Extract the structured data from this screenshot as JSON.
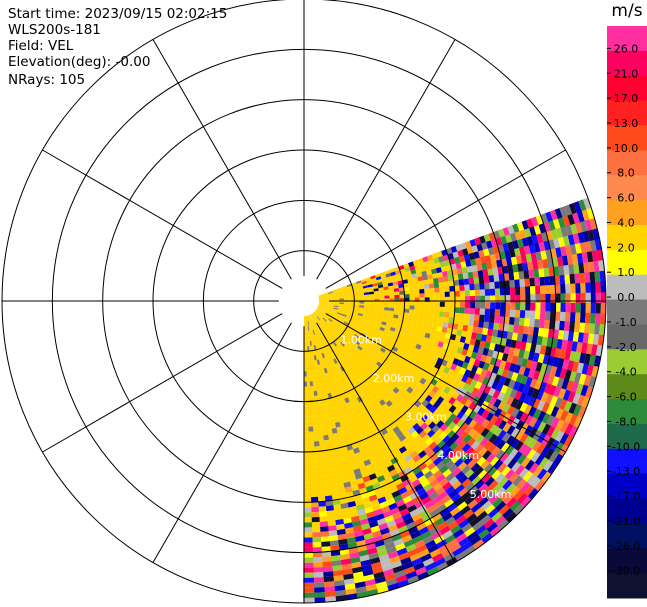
{
  "header": {
    "start_time": "Start time: 2023/09/15 02:02:15",
    "instrument": "WLS200s-181",
    "field": "Field: VEL",
    "elevation": "Elevation(deg): -0.00",
    "nrays": "NRays: 105"
  },
  "chart_data": {
    "type": "heatmap",
    "projection": "polar (PPI scan)",
    "range_ring_labels": [
      "1.00km",
      "2.00km",
      "3.00km",
      "4.00km",
      "5.00km"
    ],
    "range_rings_km": [
      1,
      2,
      3,
      4,
      5,
      6
    ],
    "max_range_km": 6,
    "radial_spokes_deg": [
      0,
      30,
      60,
      90,
      120,
      150,
      180,
      210,
      240,
      270,
      300,
      330
    ],
    "scan_sector_deg": [
      70,
      180
    ],
    "colorbar": {
      "unit": "m/s",
      "tick_labels": [
        "26.0",
        "21.0",
        "17.0",
        "13.0",
        "10.0",
        "8.0",
        "6.0",
        "4.0",
        "2.0",
        "1.0",
        "0.0",
        "-1.0",
        "-2.0",
        "-4.0",
        "-6.0",
        "-8.0",
        "-10.0",
        "-13.0",
        "-17.0",
        "-21.0",
        "-26.0",
        "-30.0"
      ],
      "colors": [
        "#ff2fa0",
        "#ff0060",
        "#ff0030",
        "#ff2020",
        "#ff4a1a",
        "#ff7040",
        "#ff8a50",
        "#ffa020",
        "#ffd400",
        "#ffff00",
        "#bcbcbc",
        "#7a7a7a",
        "#686868",
        "#9acd32",
        "#5e8a1a",
        "#2e8b3a",
        "#1e6a4a",
        "#1010ff",
        "#0000c8",
        "#000090",
        "#001060",
        "#0a0a3a",
        "#101030"
      ]
    },
    "sample_bins": [
      {
        "azimuth_deg": 100,
        "range_km": 0.5,
        "value": 3
      },
      {
        "azimuth_deg": 120,
        "range_km": 1.2,
        "value": 3.5
      },
      {
        "azimuth_deg": 150,
        "range_km": 1.8,
        "value": 2.5
      },
      {
        "azimuth_deg": 80,
        "range_km": 3.5,
        "value": -5
      },
      {
        "azimuth_deg": 130,
        "range_km": 4.5,
        "value": 20
      },
      {
        "azimuth_deg": 170,
        "range_km": 5.5,
        "value": -18
      }
    ]
  }
}
